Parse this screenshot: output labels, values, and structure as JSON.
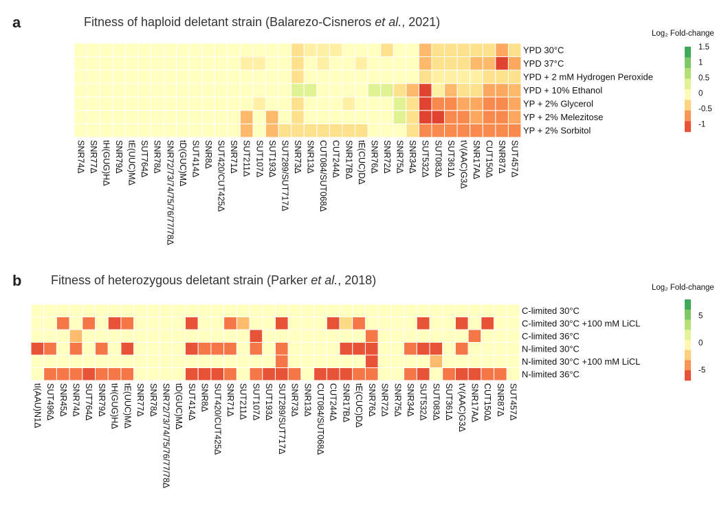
{
  "panels": [
    {
      "letter": "a",
      "title_pre": "Fitness of haploid deletant strain (Balarezo-Cisneros ",
      "title_em": "et al.",
      "title_post": ", 2021)",
      "legend_title": "Log₂ Fold-change",
      "legend_ticks": [
        "1.5",
        "1",
        "0.5",
        "0",
        "-0.5",
        "-1"
      ]
    },
    {
      "letter": "b",
      "title_pre": "Fitness of heterozygous deletant strain (Parker ",
      "title_em": "et al.",
      "title_post": ", 2018)",
      "legend_title": "Log₂ Fold-change",
      "legend_ticks": [
        "5",
        "0",
        "-5"
      ]
    }
  ],
  "colors": {
    "background": "#ffffff",
    "grid_line": "#ffffff",
    "scale": [
      "#d73027",
      "#f46d43",
      "#fdae61",
      "#fee08b",
      "#ffffbf",
      "#d9ef8b",
      "#a6d96a",
      "#66bd63",
      "#1a9850"
    ]
  },
  "chart_data": [
    {
      "type": "heatmap",
      "title": "Fitness of haploid deletant strain (Balarezo-Cisneros et al., 2021)",
      "legend_title": "Log₂ Fold-change",
      "value_range": [
        -1.25,
        1.5
      ],
      "rows": [
        "YPD 30°C",
        "YPD 37°C",
        "YPD + 2 mM Hydrogen Peroxide",
        "YPD + 10% Ethanol",
        "YP + 2% Glycerol",
        "YP + 2% Melezitose",
        "YP + 2% Sorbitol"
      ],
      "columns": [
        "SNR74Δ",
        "SNR77Δ",
        "tH(GUG)HΔ",
        "SNR79Δ",
        "tE(UUC)MΔ",
        "SUT764Δ",
        "SNR78Δ",
        "SNR72/73/74/75/76/77/78Δ",
        "tD(GUC)MΔ",
        "SUT414Δ",
        "SNR8Δ",
        "SUT420/CUT425Δ",
        "SNR71Δ",
        "SUT211Δ",
        "SUT107Δ",
        "SUT193Δ",
        "SUT289/SUT717Δ",
        "SNR73Δ",
        "SNR13Δ",
        "CUT084/SUT068Δ",
        "CUT244Δ",
        "SNR17BΔ",
        "tE(CUC)DΔ",
        "SNR76Δ",
        "SNR72Δ",
        "SNR75Δ",
        "SNR34Δ",
        "SUT532Δ",
        "SUT083Δ",
        "SUT361Δ",
        "tV(AAC)G3Δ",
        "SNR17AΔ",
        "CUT150Δ",
        "SNR87Δ",
        "SUT457Δ"
      ],
      "values": [
        [
          0,
          0,
          0,
          0,
          0,
          0,
          0,
          0,
          0,
          0,
          0,
          0,
          0,
          0,
          0,
          0,
          0,
          -0.3,
          -0.15,
          -0.15,
          -0.15,
          0,
          0,
          0,
          -0.3,
          0,
          0,
          -0.55,
          -0.3,
          -0.3,
          -0.3,
          -0.3,
          -0.3,
          -0.65,
          -0.3
        ],
        [
          0,
          0,
          0,
          0,
          0,
          0,
          0,
          0,
          0,
          0,
          0,
          0,
          0,
          -0.15,
          -0.15,
          0,
          0,
          -0.3,
          0,
          -0.15,
          0,
          0,
          -0.15,
          0,
          0,
          0,
          0,
          -0.55,
          -0.3,
          -0.3,
          -0.3,
          -0.55,
          -0.55,
          -1.15,
          -0.65
        ],
        [
          0,
          0,
          0,
          0,
          0,
          0,
          0,
          0,
          0,
          0,
          0,
          0,
          0,
          0,
          0,
          0,
          0,
          -0.3,
          0,
          0,
          0,
          0,
          0,
          0,
          0,
          0,
          0,
          -0.3,
          -0.15,
          -0.15,
          -0.15,
          -0.15,
          -0.3,
          -0.3,
          -0.3
        ],
        [
          0,
          0,
          0,
          0,
          0,
          0,
          0,
          0,
          0,
          0,
          0,
          0,
          0,
          0,
          0,
          0,
          0,
          0.3,
          0.3,
          0,
          0,
          0,
          0,
          0.3,
          0.3,
          -0.3,
          -0.55,
          -1.15,
          -0.15,
          -0.55,
          -0.3,
          -0.3,
          -0.65,
          -0.65,
          -0.55
        ],
        [
          0,
          0,
          0,
          0,
          0,
          0,
          0,
          0,
          0,
          0,
          0,
          0,
          0,
          0,
          -0.15,
          0,
          0,
          -0.3,
          0,
          0,
          0,
          -0.15,
          0,
          0,
          0,
          0.3,
          -0.3,
          -1.15,
          -0.8,
          -0.8,
          -0.65,
          -0.65,
          -0.8,
          -0.8,
          -0.65
        ],
        [
          0,
          0,
          0,
          0,
          0,
          0,
          0,
          0,
          0,
          0,
          0,
          0,
          0,
          -0.55,
          0,
          -0.55,
          0,
          -0.3,
          0,
          0,
          0,
          0,
          0,
          0,
          0,
          0.3,
          -0.3,
          -1.15,
          -1.15,
          -0.8,
          -0.8,
          -0.65,
          -0.8,
          -0.8,
          -0.65
        ],
        [
          0,
          0,
          0,
          0,
          0,
          0,
          0,
          0,
          0,
          0,
          0,
          0,
          0,
          -0.55,
          0,
          -0.55,
          -0.3,
          -0.3,
          -0.3,
          -0.3,
          -0.3,
          -0.3,
          -0.3,
          0,
          0,
          0,
          -0.3,
          -0.8,
          -0.8,
          -0.8,
          -0.8,
          -0.8,
          -0.8,
          -0.8,
          -0.8
        ]
      ]
    },
    {
      "type": "heatmap",
      "title": "Fitness of heterozygous deletant strain (Parker et al., 2018)",
      "legend_title": "Log₂ Fold-change",
      "value_range": [
        -7,
        8
      ],
      "rows": [
        "C-limited 30°C",
        "C-limited 30°C +100  mM LiCL",
        "C-limited 36°C",
        "N-limited 30°C",
        "N-limited 30°C +100  mM LiCL",
        "N-limited 36°C"
      ],
      "columns": [
        "tI(AAU)N1Δ",
        "SUT496Δ",
        "SNR45Δ",
        "SNR74Δ",
        "SUT764Δ",
        "SNR79Δ",
        "tH(GUG)HΔ",
        "tE(UUC)MΔ",
        "SNR77Δ",
        "SNR78Δ",
        "SNR72/73/74/75/76/77/78Δ",
        "tD(GUC)MΔ",
        "SUT414Δ",
        "SNR8Δ",
        "SUT420/CUT425Δ",
        "SNR71Δ",
        "SUT211Δ",
        "SUT107Δ",
        "SUT193Δ",
        "SUT289/SUT717Δ",
        "SNR73Δ",
        "SNR13Δ",
        "CUT084/SUT068Δ",
        "CUT244Δ",
        "SNR17BΔ",
        "tE(CUC)DΔ",
        "SNR76Δ",
        "SNR72Δ",
        "SNR75Δ",
        "SNR34Δ",
        "SUT532Δ",
        "SUT083Δ",
        "SUT361Δ",
        "tV(AAC)G3Δ",
        "SNR17AΔ",
        "CUT150Δ",
        "SNR87Δ",
        "SUT457Δ"
      ],
      "values": [
        [
          0,
          0,
          0,
          0,
          0,
          0,
          0,
          0,
          0,
          0,
          0,
          0,
          0,
          0,
          0,
          0,
          0,
          0,
          0,
          0,
          0,
          0,
          0,
          0,
          0,
          0,
          0,
          0,
          0,
          0,
          0,
          0,
          0,
          0,
          0,
          0,
          0,
          0
        ],
        [
          0,
          0,
          -5,
          0,
          -5,
          0,
          -6,
          -5,
          0,
          0,
          0,
          0,
          -6,
          0,
          0,
          -5,
          -3,
          0,
          0,
          -6,
          0,
          0,
          0,
          -6,
          -2,
          -5,
          0,
          0,
          0,
          0,
          -6,
          0,
          0,
          -6,
          0,
          -6,
          0,
          0
        ],
        [
          0,
          0,
          0,
          -3,
          0,
          0,
          0,
          0,
          0,
          0,
          0,
          0,
          0,
          0,
          0,
          0,
          0,
          -6,
          0,
          0,
          0,
          0,
          0,
          0,
          0,
          0,
          -5,
          0,
          0,
          0,
          0,
          0,
          0,
          0,
          -5,
          0,
          0,
          0
        ],
        [
          -6,
          -5,
          0,
          -5,
          0,
          -5,
          0,
          -6,
          0,
          0,
          0,
          0,
          -6,
          -5,
          -5,
          -5,
          0,
          -5,
          0,
          -5,
          0,
          0,
          0,
          0,
          -6,
          -6,
          -6,
          0,
          0,
          -5,
          -6,
          -6,
          0,
          -5,
          0,
          0,
          0,
          0
        ],
        [
          0,
          0,
          0,
          0,
          0,
          0,
          0,
          0,
          0,
          0,
          0,
          0,
          0,
          0,
          0,
          0,
          0,
          0,
          0,
          -5,
          0,
          0,
          0,
          0,
          0,
          0,
          -6,
          0,
          0,
          0,
          0,
          -3,
          0,
          0,
          0,
          0,
          0,
          0
        ],
        [
          0,
          -5,
          -5,
          -5,
          -6,
          -5,
          -5,
          -5,
          0,
          0,
          0,
          0,
          -6,
          -6,
          -6,
          -5,
          0,
          -5,
          -6,
          -6,
          -5,
          0,
          -6,
          -6,
          -6,
          -5,
          -5,
          0,
          0,
          -5,
          -6,
          0,
          -5,
          -6,
          -6,
          -5,
          -5,
          0
        ]
      ]
    }
  ]
}
